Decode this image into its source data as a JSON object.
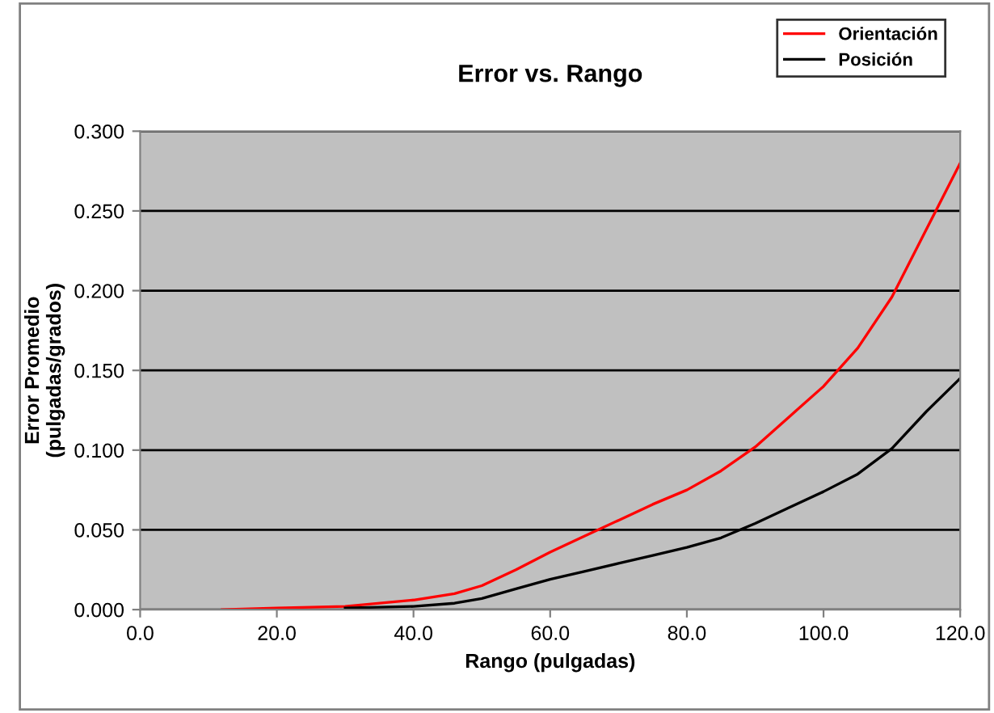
{
  "chart_data": {
    "type": "line",
    "title": "Error vs. Rango",
    "xlabel": "Rango (pulgadas)",
    "ylabel": "Error Promedio\n(pulgadas/grados)",
    "x": [
      12,
      20,
      30,
      40,
      46,
      50,
      55,
      60,
      65,
      70,
      75,
      80,
      85,
      90,
      95,
      100,
      105,
      110,
      115,
      120
    ],
    "series": [
      {
        "name": "Orientación",
        "color": "#ff0000",
        "values": [
          0,
          0.001,
          0.002,
          0.006,
          0.01,
          0.015,
          0.025,
          0.036,
          0.046,
          0.056,
          0.066,
          0.075,
          0.087,
          0.102,
          0.121,
          0.14,
          0.164,
          0.196,
          0.238,
          0.28
        ]
      },
      {
        "name": "Posición",
        "color": "#000000",
        "values": [
          null,
          null,
          0.001,
          0.002,
          0.004,
          0.007,
          0.013,
          0.019,
          0.024,
          0.029,
          0.034,
          0.039,
          0.045,
          0.054,
          0.064,
          0.074,
          0.085,
          0.101,
          0.124,
          0.145
        ]
      }
    ],
    "xlim": [
      0,
      120
    ],
    "xticks": [
      {
        "value": 0,
        "label": "0.0"
      },
      {
        "value": 20,
        "label": "20.0"
      },
      {
        "value": 40,
        "label": "40.0"
      },
      {
        "value": 60,
        "label": "60.0"
      },
      {
        "value": 80,
        "label": "80.0"
      },
      {
        "value": 100,
        "label": "100.0"
      },
      {
        "value": 120,
        "label": "120.0"
      }
    ],
    "ylim": [
      0,
      0.3
    ],
    "yticks": [
      {
        "value": 0,
        "label": "0.000"
      },
      {
        "value": 0.05,
        "label": "0.050"
      },
      {
        "value": 0.1,
        "label": "0.100"
      },
      {
        "value": 0.15,
        "label": "0.150"
      },
      {
        "value": 0.2,
        "label": "0.200"
      },
      {
        "value": 0.25,
        "label": "0.250"
      },
      {
        "value": 0.3,
        "label": "0.300"
      }
    ],
    "grid": "y",
    "legend": "top right",
    "marker": "none",
    "line_style": "solid"
  }
}
